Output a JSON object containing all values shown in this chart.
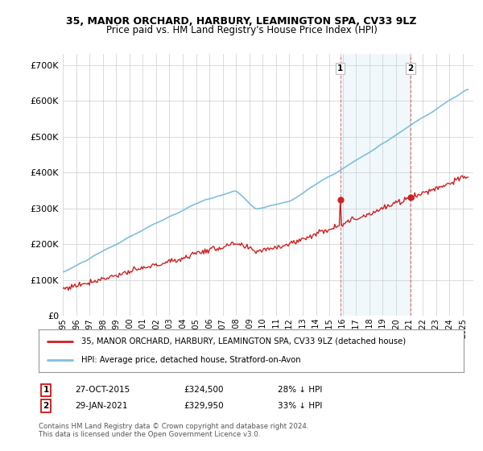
{
  "title_line1": "35, MANOR ORCHARD, HARBURY, LEAMINGTON SPA, CV33 9LZ",
  "title_line2": "Price paid vs. HM Land Registry's House Price Index (HPI)",
  "ylabel_ticks": [
    "£0",
    "£100K",
    "£200K",
    "£300K",
    "£400K",
    "£500K",
    "£600K",
    "£700K"
  ],
  "ytick_values": [
    0,
    100000,
    200000,
    300000,
    400000,
    500000,
    600000,
    700000
  ],
  "ylim": [
    0,
    730000
  ],
  "xlim_start": 1995.0,
  "xlim_end": 2025.8,
  "marker1_date": 2015.82,
  "marker1_price": 324500,
  "marker1_label": "1",
  "marker2_date": 2021.08,
  "marker2_price": 329950,
  "marker2_label": "2",
  "hpi_color": "#7fbfdf",
  "price_color": "#cc2222",
  "vline_color": "#cc2222",
  "legend_label_price": "35, MANOR ORCHARD, HARBURY, LEAMINGTON SPA, CV33 9LZ (detached house)",
  "legend_label_hpi": "HPI: Average price, detached house, Stratford-on-Avon",
  "footnote1": "Contains HM Land Registry data © Crown copyright and database right 2024.",
  "footnote2": "This data is licensed under the Open Government Licence v3.0.",
  "xtick_years": [
    1995,
    1996,
    1997,
    1998,
    1999,
    2000,
    2001,
    2002,
    2003,
    2004,
    2005,
    2006,
    2007,
    2008,
    2009,
    2010,
    2011,
    2012,
    2013,
    2014,
    2015,
    2016,
    2017,
    2018,
    2019,
    2020,
    2021,
    2022,
    2023,
    2024,
    2025
  ],
  "background_color": "#ffffff",
  "grid_color": "#cccccc",
  "shaded_region_start": 2015.82,
  "shaded_region_end": 2021.08,
  "row1_date": "27-OCT-2015",
  "row1_price": "£324,500",
  "row1_hpi": "28% ↓ HPI",
  "row2_date": "29-JAN-2021",
  "row2_price": "£329,950",
  "row2_hpi": "33% ↓ HPI"
}
